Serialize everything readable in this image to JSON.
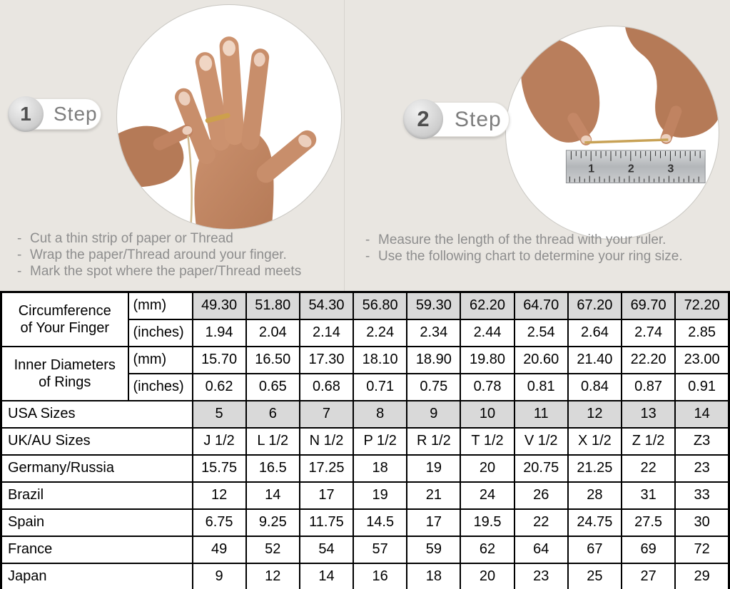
{
  "bullet": "-",
  "colors": {
    "page_background": "#e9e6e1",
    "shaded_cell": "#d9d9d9",
    "table_border": "#000000",
    "instruction_text": "#8e8e8e",
    "ring_gold": "#cda04c"
  },
  "steps": [
    {
      "number": "1",
      "label": "Step",
      "instructions": [
        "Cut a thin strip of paper or Thread",
        "Wrap the paper/Thread around your finger.",
        "Mark the spot where the paper/Thread meets"
      ]
    },
    {
      "number": "2",
      "label": "Step",
      "instructions": [
        "Measure the length of the thread with your ruler.",
        "Use the following chart to determine your ring size."
      ],
      "ruler_numbers": [
        "1",
        "2",
        "3"
      ]
    }
  ],
  "table": {
    "row_groups": [
      {
        "label_lines": [
          "Circumference",
          "of Your Finger"
        ],
        "rows": [
          {
            "unit": "(mm)",
            "shaded": true,
            "values": [
              "49.30",
              "51.80",
              "54.30",
              "56.80",
              "59.30",
              "62.20",
              "64.70",
              "67.20",
              "69.70",
              "72.20"
            ]
          },
          {
            "unit": "(inches)",
            "shaded": false,
            "values": [
              "1.94",
              "2.04",
              "2.14",
              "2.24",
              "2.34",
              "2.44",
              "2.54",
              "2.64",
              "2.74",
              "2.85"
            ]
          }
        ]
      },
      {
        "label_lines": [
          "Inner Diameters",
          "of Rings"
        ],
        "rows": [
          {
            "unit": "(mm)",
            "shaded": false,
            "values": [
              "15.70",
              "16.50",
              "17.30",
              "18.10",
              "18.90",
              "19.80",
              "20.60",
              "21.40",
              "22.20",
              "23.00"
            ]
          },
          {
            "unit": "(inches)",
            "shaded": false,
            "values": [
              "0.62",
              "0.65",
              "0.68",
              "0.71",
              "0.75",
              "0.78",
              "0.81",
              "0.84",
              "0.87",
              "0.91"
            ]
          }
        ]
      }
    ],
    "size_rows": [
      {
        "label": "USA Sizes",
        "shaded": true,
        "values": [
          "5",
          "6",
          "7",
          "8",
          "9",
          "10",
          "11",
          "12",
          "13",
          "14"
        ]
      },
      {
        "label": "UK/AU Sizes",
        "shaded": false,
        "values": [
          "J 1/2",
          "L 1/2",
          "N 1/2",
          "P 1/2",
          "R 1/2",
          "T 1/2",
          "V 1/2",
          "X 1/2",
          "Z 1/2",
          "Z3"
        ]
      },
      {
        "label": "Germany/Russia",
        "shaded": false,
        "values": [
          "15.75",
          "16.5",
          "17.25",
          "18",
          "19",
          "20",
          "20.75",
          "21.25",
          "22",
          "23"
        ]
      },
      {
        "label": "Brazil",
        "shaded": false,
        "values": [
          "12",
          "14",
          "17",
          "19",
          "21",
          "24",
          "26",
          "28",
          "31",
          "33"
        ]
      },
      {
        "label": "Spain",
        "shaded": false,
        "values": [
          "6.75",
          "9.25",
          "11.75",
          "14.5",
          "17",
          "19.5",
          "22",
          "24.75",
          "27.5",
          "30"
        ]
      },
      {
        "label": "France",
        "shaded": false,
        "values": [
          "49",
          "52",
          "54",
          "57",
          "59",
          "62",
          "64",
          "67",
          "69",
          "72"
        ]
      },
      {
        "label": "Japan",
        "shaded": false,
        "values": [
          "9",
          "12",
          "14",
          "16",
          "18",
          "20",
          "23",
          "25",
          "27",
          "29"
        ]
      }
    ]
  }
}
